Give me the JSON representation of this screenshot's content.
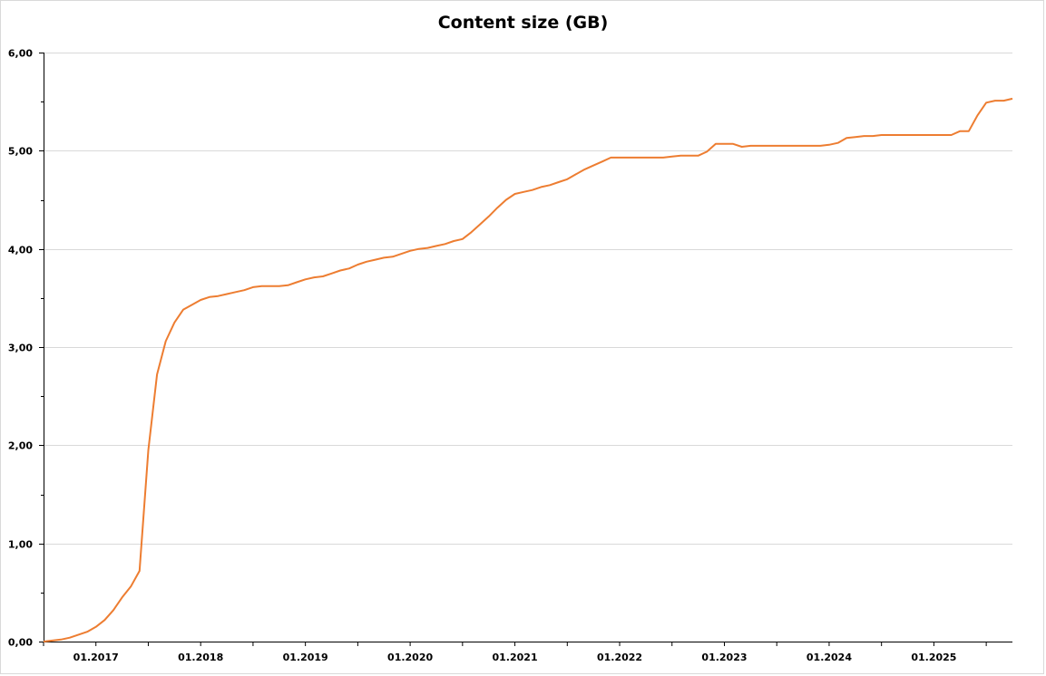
{
  "chart_data": {
    "type": "line",
    "title": "Content size (GB)",
    "xlabel": "",
    "ylabel": "",
    "ylim": [
      0,
      6
    ],
    "y_ticks": [
      "0,00",
      "1,00",
      "2,00",
      "3,00",
      "4,00",
      "5,00",
      "6,00"
    ],
    "x_tick_labels": [
      "01.2017",
      "01.2018",
      "01.2019",
      "01.2020",
      "01.2021",
      "01.2022",
      "01.2023",
      "01.2024",
      "01.2025"
    ],
    "x_start": "2016-07",
    "x_end": "2025-10",
    "grid": true,
    "legend": "none",
    "series": [
      {
        "color": "#ED7D31",
        "points": [
          [
            "2016-07",
            0.0
          ],
          [
            "2016-08",
            0.01
          ],
          [
            "2016-09",
            0.02
          ],
          [
            "2016-10",
            0.04
          ],
          [
            "2016-11",
            0.07
          ],
          [
            "2016-12",
            0.1
          ],
          [
            "2017-01",
            0.15
          ],
          [
            "2017-02",
            0.22
          ],
          [
            "2017-03",
            0.32
          ],
          [
            "2017-04",
            0.45
          ],
          [
            "2017-05",
            0.56
          ],
          [
            "2017-06",
            0.72
          ],
          [
            "2017-07",
            1.95
          ],
          [
            "2017-08",
            2.72
          ],
          [
            "2017-09",
            3.06
          ],
          [
            "2017-10",
            3.25
          ],
          [
            "2017-11",
            3.38
          ],
          [
            "2017-12",
            3.43
          ],
          [
            "2018-01",
            3.48
          ],
          [
            "2018-02",
            3.51
          ],
          [
            "2018-03",
            3.52
          ],
          [
            "2018-04",
            3.54
          ],
          [
            "2018-05",
            3.56
          ],
          [
            "2018-06",
            3.58
          ],
          [
            "2018-07",
            3.61
          ],
          [
            "2018-08",
            3.62
          ],
          [
            "2018-09",
            3.62
          ],
          [
            "2018-10",
            3.62
          ],
          [
            "2018-11",
            3.63
          ],
          [
            "2018-12",
            3.66
          ],
          [
            "2019-01",
            3.69
          ],
          [
            "2019-02",
            3.71
          ],
          [
            "2019-03",
            3.72
          ],
          [
            "2019-04",
            3.75
          ],
          [
            "2019-05",
            3.78
          ],
          [
            "2019-06",
            3.8
          ],
          [
            "2019-07",
            3.84
          ],
          [
            "2019-08",
            3.87
          ],
          [
            "2019-09",
            3.89
          ],
          [
            "2019-10",
            3.91
          ],
          [
            "2019-11",
            3.92
          ],
          [
            "2019-12",
            3.95
          ],
          [
            "2020-01",
            3.98
          ],
          [
            "2020-02",
            4.0
          ],
          [
            "2020-03",
            4.01
          ],
          [
            "2020-04",
            4.03
          ],
          [
            "2020-05",
            4.05
          ],
          [
            "2020-06",
            4.08
          ],
          [
            "2020-07",
            4.1
          ],
          [
            "2020-08",
            4.17
          ],
          [
            "2020-09",
            4.25
          ],
          [
            "2020-10",
            4.33
          ],
          [
            "2020-11",
            4.42
          ],
          [
            "2020-12",
            4.5
          ],
          [
            "2021-01",
            4.56
          ],
          [
            "2021-02",
            4.58
          ],
          [
            "2021-03",
            4.6
          ],
          [
            "2021-04",
            4.63
          ],
          [
            "2021-05",
            4.65
          ],
          [
            "2021-06",
            4.68
          ],
          [
            "2021-07",
            4.71
          ],
          [
            "2021-08",
            4.76
          ],
          [
            "2021-09",
            4.81
          ],
          [
            "2021-10",
            4.85
          ],
          [
            "2021-11",
            4.89
          ],
          [
            "2021-12",
            4.93
          ],
          [
            "2022-01",
            4.93
          ],
          [
            "2022-06",
            4.93
          ],
          [
            "2022-07",
            4.94
          ],
          [
            "2022-08",
            4.95
          ],
          [
            "2022-09",
            4.95
          ],
          [
            "2022-10",
            4.95
          ],
          [
            "2022-11",
            4.99
          ],
          [
            "2022-12",
            5.07
          ],
          [
            "2023-01",
            5.07
          ],
          [
            "2023-02",
            5.07
          ],
          [
            "2023-03",
            5.04
          ],
          [
            "2023-04",
            5.05
          ],
          [
            "2023-12",
            5.05
          ],
          [
            "2024-01",
            5.06
          ],
          [
            "2024-02",
            5.08
          ],
          [
            "2024-03",
            5.13
          ],
          [
            "2024-04",
            5.14
          ],
          [
            "2024-05",
            5.15
          ],
          [
            "2024-06",
            5.15
          ],
          [
            "2024-07",
            5.16
          ],
          [
            "2025-03",
            5.16
          ],
          [
            "2025-04",
            5.2
          ],
          [
            "2025-05",
            5.2
          ],
          [
            "2025-06",
            5.36
          ],
          [
            "2025-07",
            5.49
          ],
          [
            "2025-08",
            5.51
          ],
          [
            "2025-09",
            5.51
          ],
          [
            "2025-10",
            5.53
          ]
        ]
      }
    ]
  }
}
